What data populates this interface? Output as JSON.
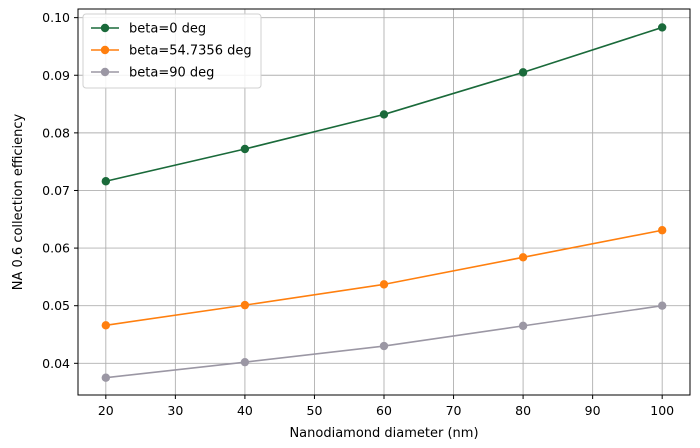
{
  "chart_data": {
    "type": "line",
    "x": [
      20,
      40,
      60,
      80,
      100
    ],
    "series": [
      {
        "name": "beta=0 deg",
        "color": "#1a6a3a",
        "values": [
          0.0716,
          0.0772,
          0.0832,
          0.0905,
          0.0983
        ]
      },
      {
        "name": "beta=54.7356 deg",
        "color": "#ff7f0e",
        "values": [
          0.0466,
          0.0501,
          0.0537,
          0.0584,
          0.0631
        ]
      },
      {
        "name": "beta=90 deg",
        "color": "#9b97a4",
        "values": [
          0.0375,
          0.0402,
          0.043,
          0.0465,
          0.05
        ]
      }
    ],
    "xlabel": "Nanodiamond diameter (nm)",
    "ylabel": "NA 0.6 collection efficiency",
    "xlim": [
      16,
      104
    ],
    "ylim": [
      0.0345,
      0.1015
    ],
    "xticks": [
      20,
      30,
      40,
      50,
      60,
      70,
      80,
      90,
      100
    ],
    "yticks": [
      0.04,
      0.05,
      0.06,
      0.07,
      0.08,
      0.09,
      0.1
    ],
    "ytick_labels": [
      "0.04",
      "0.05",
      "0.06",
      "0.07",
      "0.08",
      "0.09",
      "0.10"
    ],
    "grid": true,
    "marker": "circle",
    "legend_position": "top-left"
  }
}
